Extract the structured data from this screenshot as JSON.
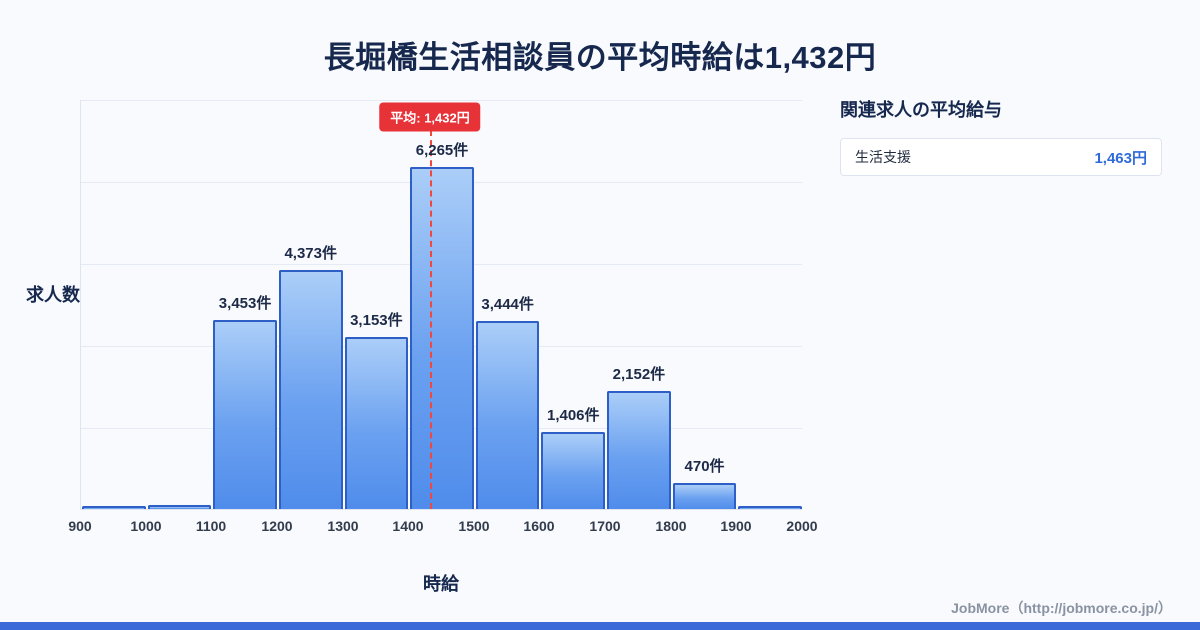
{
  "title": "長堀橋生活相談員の平均時給は1,432円",
  "chart_data": {
    "type": "bar",
    "title": "長堀橋生活相談員の平均時給は1,432円",
    "xlabel": "時給",
    "ylabel": "求人数",
    "x_ticks": [
      900,
      1000,
      1100,
      1200,
      1300,
      1400,
      1500,
      1600,
      1700,
      1800,
      1900,
      2000
    ],
    "bins": [
      {
        "range": [
          900,
          1000
        ],
        "value": 60,
        "label": ""
      },
      {
        "range": [
          1000,
          1100
        ],
        "value": 70,
        "label": ""
      },
      {
        "range": [
          1100,
          1200
        ],
        "value": 3453,
        "label": "3,453件"
      },
      {
        "range": [
          1200,
          1300
        ],
        "value": 4373,
        "label": "4,373件"
      },
      {
        "range": [
          1300,
          1400
        ],
        "value": 3153,
        "label": "3,153件"
      },
      {
        "range": [
          1400,
          1500
        ],
        "value": 6265,
        "label": "6,265件"
      },
      {
        "range": [
          1500,
          1600
        ],
        "value": 3444,
        "label": "3,444件"
      },
      {
        "range": [
          1600,
          1700
        ],
        "value": 1406,
        "label": "1,406件"
      },
      {
        "range": [
          1700,
          1800
        ],
        "value": 2152,
        "label": "2,152件"
      },
      {
        "range": [
          1800,
          1900
        ],
        "value": 470,
        "label": "470件"
      },
      {
        "range": [
          1900,
          2000
        ],
        "value": 60,
        "label": ""
      }
    ],
    "mean": 1432,
    "mean_label": "平均: 1,432円",
    "ylim": [
      0,
      7500
    ],
    "y_gridlines": 5,
    "grid": true,
    "bar_fill_top": "#abcef8",
    "bar_fill_bottom": "#4f8ceb",
    "bar_border": "#2d5fc6",
    "mean_line_color": "#f0473e",
    "mean_badge_color": "#e73238"
  },
  "side_panel": {
    "title": "関連求人の平均給与",
    "items": [
      {
        "label": "生活支援",
        "value": "1,463円"
      }
    ]
  },
  "footer": {
    "credit": "JobMore（http://jobmore.co.jp/）"
  }
}
